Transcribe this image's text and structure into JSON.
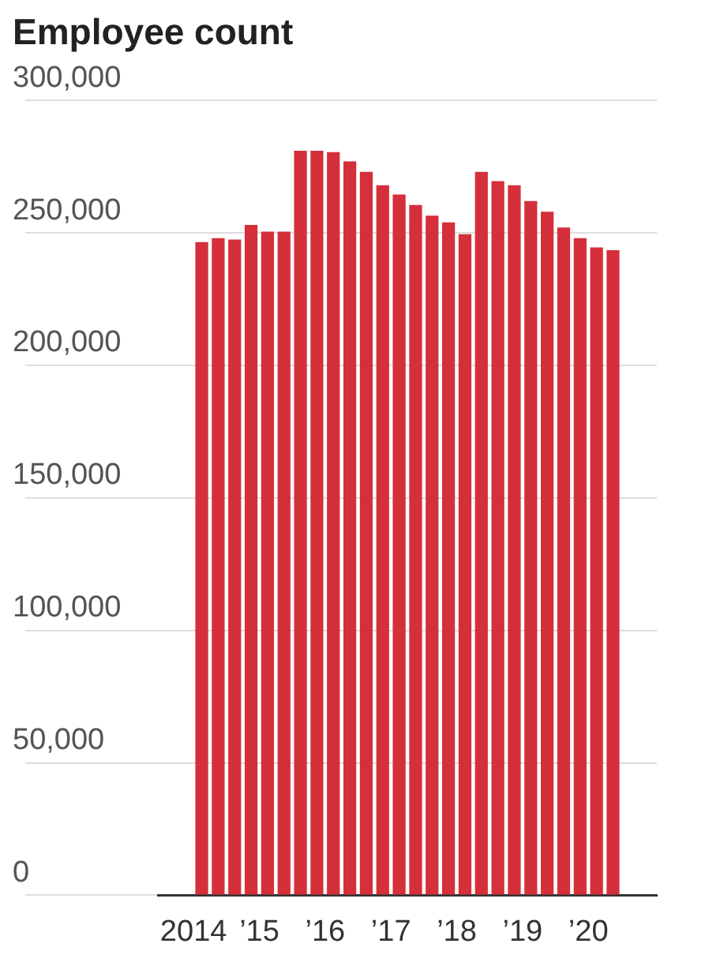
{
  "chart_data": {
    "type": "bar",
    "title": "Employee count",
    "x": [
      2014.125,
      2014.375,
      2014.625,
      2014.875,
      2015.125,
      2015.375,
      2015.625,
      2015.875,
      2016.125,
      2016.375,
      2016.625,
      2016.875,
      2017.125,
      2017.375,
      2017.625,
      2017.875,
      2018.125,
      2018.375,
      2018.625,
      2018.875,
      2019.125,
      2019.375,
      2019.625,
      2019.875,
      2020.125,
      2020.375
    ],
    "values": [
      246500,
      248000,
      247500,
      253000,
      250500,
      250500,
      281000,
      281000,
      280500,
      277000,
      273000,
      268000,
      264500,
      260500,
      256500,
      254000,
      249500,
      273000,
      269500,
      268000,
      262000,
      258000,
      252000,
      248000,
      244500,
      243500
    ],
    "color": "#d42f3a",
    "xlim": [
      2014,
      2020.5
    ],
    "xticks": [
      {
        "value": 2014,
        "label": "2014"
      },
      {
        "value": 2015,
        "label": "’15"
      },
      {
        "value": 2016,
        "label": "’16"
      },
      {
        "value": 2017,
        "label": "’17"
      },
      {
        "value": 2018,
        "label": "’18"
      },
      {
        "value": 2019,
        "label": "’19"
      },
      {
        "value": 2020,
        "label": "’20"
      }
    ],
    "ylim": [
      0,
      300000
    ],
    "yticks": [
      {
        "value": 0,
        "label": "0"
      },
      {
        "value": 50000,
        "label": "50,000"
      },
      {
        "value": 100000,
        "label": "100,000"
      },
      {
        "value": 150000,
        "label": "150,000"
      },
      {
        "value": 200000,
        "label": "200,000"
      },
      {
        "value": 250000,
        "label": "250,000"
      },
      {
        "value": 300000,
        "label": "300,000"
      }
    ],
    "grid": "y"
  }
}
